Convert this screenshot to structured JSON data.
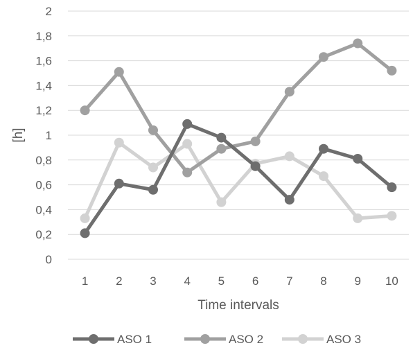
{
  "chart_data": {
    "type": "line",
    "xlabel": "Time intervals",
    "ylabel": "[h]",
    "categories": [
      "1",
      "2",
      "3",
      "4",
      "5",
      "6",
      "7",
      "8",
      "9",
      "10"
    ],
    "ylim": [
      0,
      2
    ],
    "yticks": [
      "0",
      "0,2",
      "0,4",
      "0,6",
      "0,8",
      "1",
      "1,2",
      "1,4",
      "1,6",
      "1,8",
      "2"
    ],
    "grid": true,
    "legend_position": "bottom",
    "series": [
      {
        "name": "ASO 1",
        "color": "#6e6e6e",
        "values": [
          0.21,
          0.61,
          0.56,
          1.09,
          0.98,
          0.75,
          0.48,
          0.89,
          0.81,
          0.58
        ]
      },
      {
        "name": "ASO 2",
        "color": "#a0a0a0",
        "values": [
          1.2,
          1.51,
          1.04,
          0.7,
          0.89,
          0.95,
          1.35,
          1.63,
          1.74,
          1.52
        ]
      },
      {
        "name": "ASO 3",
        "color": "#d2d2d2",
        "values": [
          0.33,
          0.94,
          0.74,
          0.93,
          0.46,
          0.77,
          0.83,
          0.67,
          0.33,
          0.35
        ]
      }
    ]
  }
}
